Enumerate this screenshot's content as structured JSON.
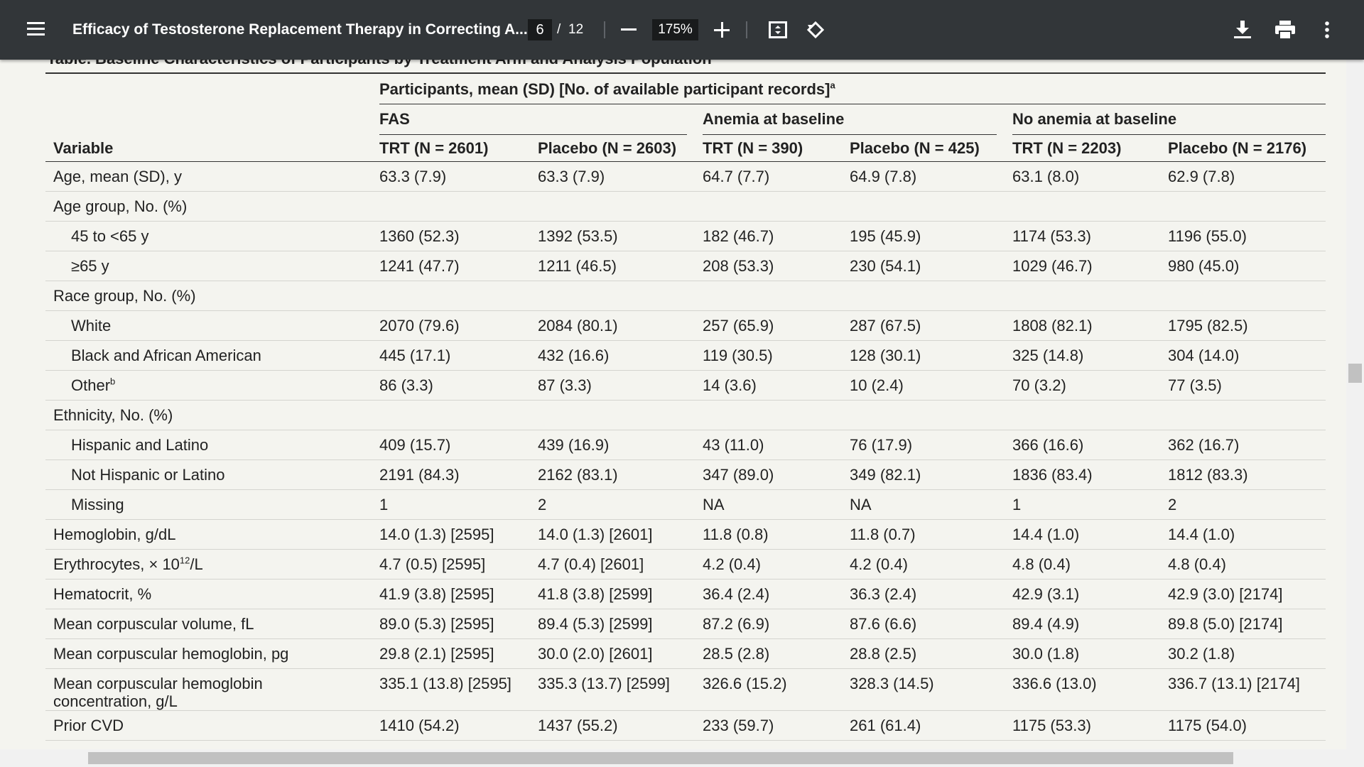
{
  "toolbar": {
    "title": "Efficacy of Testosterone Replacement Therapy in Correcting A...",
    "page": "6",
    "separator": "/",
    "total_pages": "12",
    "zoom": "175%"
  },
  "table": {
    "caption": "Table. Baseline Characteristics of Participants by Treatment Arm and Analysis Population",
    "group_header": {
      "text": "Participants, mean (SD) [No. of available participant records]",
      "sup": "a"
    },
    "subgroups": [
      "FAS",
      "Anemia at baseline",
      "No anemia at baseline"
    ],
    "columns": [
      "Variable",
      "TRT (N = 2601)",
      "Placebo (N = 2603)",
      "TRT (N = 390)",
      "Placebo (N = 425)",
      "TRT (N = 2203)",
      "Placebo (N = 2176)"
    ],
    "rows": [
      [
        "Age, mean (SD), y",
        "63.3 (7.9)",
        "63.3 (7.9)",
        "64.7 (7.7)",
        "64.9 (7.8)",
        "63.1 (8.0)",
        "62.9 (7.8)"
      ],
      [
        "Age group, No. (%)"
      ],
      [
        "45 to <65 y",
        "1360 (52.3)",
        "1392 (53.5)",
        "182 (46.7)",
        "195 (45.9)",
        "1174 (53.3)",
        "1196 (55.0)"
      ],
      [
        "≥65 y",
        "1241 (47.7)",
        "1211 (46.5)",
        "208 (53.3)",
        "230 (54.1)",
        "1029 (46.7)",
        "980 (45.0)"
      ],
      [
        "Race group, No. (%)"
      ],
      [
        "White",
        "2070 (79.6)",
        "2084 (80.1)",
        "257 (65.9)",
        "287 (67.5)",
        "1808 (82.1)",
        "1795 (82.5)"
      ],
      [
        "Black and African American",
        "445 (17.1)",
        "432 (16.6)",
        "119 (30.5)",
        "128 (30.1)",
        "325 (14.8)",
        "304 (14.0)"
      ],
      [
        {
          "text": "Other",
          "sup": "b"
        },
        "86 (3.3)",
        "87 (3.3)",
        "14 (3.6)",
        "10 (2.4)",
        "70 (3.2)",
        "77 (3.5)"
      ],
      [
        "Ethnicity, No. (%)"
      ],
      [
        "Hispanic and Latino",
        "409 (15.7)",
        "439 (16.9)",
        "43 (11.0)",
        "76 (17.9)",
        "366 (16.6)",
        "362 (16.7)"
      ],
      [
        "Not Hispanic or Latino",
        "2191 (84.3)",
        "2162 (83.1)",
        "347 (89.0)",
        "349 (82.1)",
        "1836 (83.4)",
        "1812 (83.3)"
      ],
      [
        "Missing",
        "1",
        "2",
        "NA",
        "NA",
        "1",
        "2"
      ],
      [
        "Hemoglobin, g/dL",
        "14.0 (1.3) [2595]",
        "14.0 (1.3) [2601]",
        "11.8 (0.8)",
        "11.8 (0.7)",
        "14.4 (1.0)",
        "14.4 (1.0)"
      ],
      [
        {
          "text": "Erythrocytes, × 10",
          "sup": "12",
          "after": "/L"
        },
        "4.7 (0.5) [2595]",
        "4.7 (0.4) [2601]",
        "4.2 (0.4)",
        "4.2 (0.4)",
        "4.8 (0.4)",
        "4.8 (0.4)"
      ],
      [
        "Hematocrit, %",
        "41.9 (3.8) [2595]",
        "41.8 (3.8) [2599]",
        "36.4 (2.4)",
        "36.3 (2.4)",
        "42.9 (3.1)",
        "42.9 (3.0) [2174]"
      ],
      [
        "Mean corpuscular volume, fL",
        "89.0 (5.3) [2595]",
        "89.4 (5.3) [2599]",
        "87.2 (6.9)",
        "87.6 (6.6)",
        "89.4 (4.9)",
        "89.8 (5.0) [2174]"
      ],
      [
        "Mean corpuscular hemoglobin, pg",
        "29.8 (2.1) [2595]",
        "30.0 (2.0) [2601]",
        "28.5 (2.8)",
        "28.8 (2.5)",
        "30.0 (1.8)",
        "30.2 (1.8)"
      ],
      [
        "Mean corpuscular hemoglobin concentration, g/L",
        "335.1 (13.8) [2595]",
        "335.3 (13.7) [2599]",
        "326.6 (15.2)",
        "328.3 (14.5)",
        "336.6 (13.0)",
        "336.7 (13.1) [2174]"
      ],
      [
        "Prior CVD",
        "1410 (54.2)",
        "1437 (55.2)",
        "233 (59.7)",
        "261 (61.4)",
        "1175 (53.3)",
        "1175 (54.0)"
      ]
    ]
  }
}
